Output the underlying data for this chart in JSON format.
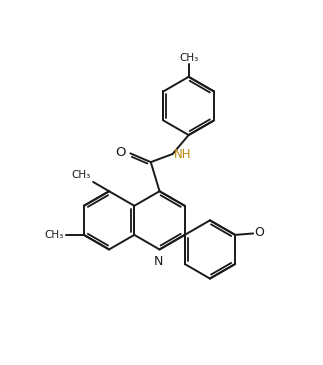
{
  "figsize": [
    3.23,
    3.65
  ],
  "dpi": 100,
  "bg": "#ffffff",
  "lc": "#1a1a1a",
  "nh_color": "#b8860b",
  "lw": 1.4,
  "BL": 1.0,
  "xlim": [
    -1.5,
    9.5
  ],
  "ylim": [
    -0.5,
    11.5
  ]
}
